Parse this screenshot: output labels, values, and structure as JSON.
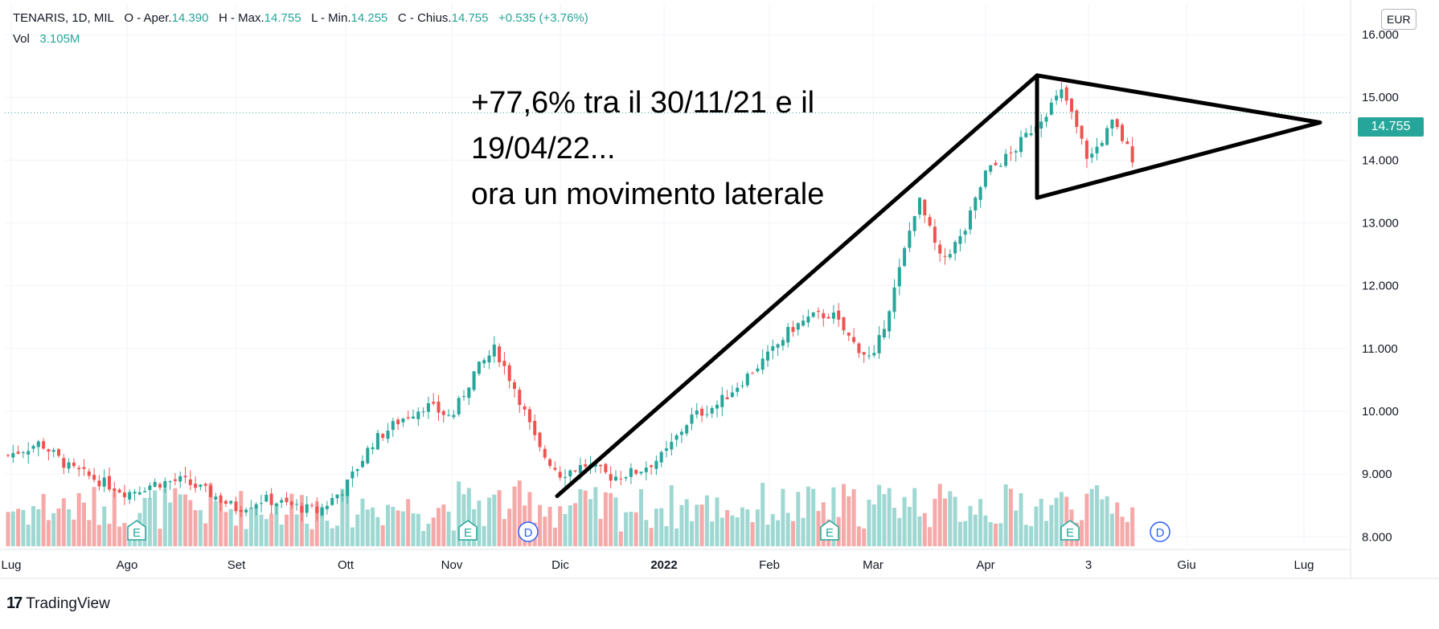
{
  "legend": {
    "symbol": "TENARIS, 1D, MIL",
    "open_label": "O - Aper.",
    "open": "14.390",
    "high_label": "H - Max.",
    "high": "14.755",
    "low_label": "L - Min.",
    "low": "14.255",
    "close_label": "C - Chius.",
    "close": "14.755",
    "change": "+0.535 (+3.76%)",
    "vol_label": "Vol",
    "vol": "3.105M"
  },
  "currency": "EUR",
  "last_price_tag": "14.755",
  "annotation": {
    "line1": " +77,6% tra il 30/11/21 e il",
    "line2": "19/04/22...",
    "line3": "ora un movimento laterale"
  },
  "brand": {
    "logo": "17",
    "name": "TradingView"
  },
  "event_markers": [
    "E",
    "E",
    "D",
    "E",
    "E",
    "D"
  ],
  "colors": {
    "up": "#26a69a",
    "down": "#ef5350",
    "vol_up": "#9fd8d2",
    "vol_down": "#f5a9a8",
    "grid": "#f0f3fa",
    "drawing": "#000000"
  },
  "chart_data": {
    "type": "candlestick",
    "symbol": "TENARIS",
    "interval": "1D",
    "exchange": "MIL",
    "currency": "EUR",
    "x_ticks": [
      "Lug",
      "Ago",
      "Set",
      "Ott",
      "Nov",
      "Dic",
      "2022",
      "Feb",
      "Mar",
      "Apr",
      "3",
      "Giu",
      "Lug"
    ],
    "y_ticks": [
      "16.000",
      "15.000",
      "14.000",
      "13.000",
      "12.000",
      "11.000",
      "10.000",
      "9.000",
      "8.000"
    ],
    "ylim": [
      7.85,
      16.5
    ],
    "last_close": 14.755,
    "close_path": [
      [
        "Lug",
        9.3
      ],
      [
        "Lug",
        9.5
      ],
      [
        "Lug",
        9.1
      ],
      [
        "Lug",
        8.9
      ],
      [
        "Ago",
        8.7
      ],
      [
        "Ago",
        8.85
      ],
      [
        "Ago",
        8.9
      ],
      [
        "Ago",
        8.7
      ],
      [
        "Set",
        8.45
      ],
      [
        "Set",
        8.6
      ],
      [
        "Set",
        8.5
      ],
      [
        "Set",
        8.4
      ],
      [
        "Ott",
        8.8
      ],
      [
        "Ott",
        9.5
      ],
      [
        "Ott",
        9.85
      ],
      [
        "Ott",
        10.1
      ],
      [
        "Nov",
        9.9
      ],
      [
        "Nov",
        10.6
      ],
      [
        "Nov",
        11.0
      ],
      [
        "Nov",
        10.3
      ],
      [
        "Nov",
        9.4
      ],
      [
        "Dic",
        9.0
      ],
      [
        "Dic",
        9.15
      ],
      [
        "Dic",
        8.95
      ],
      [
        "Dic",
        9.05
      ],
      [
        "2022",
        9.3
      ],
      [
        "2022",
        9.9
      ],
      [
        "2022",
        10.1
      ],
      [
        "2022",
        10.5
      ],
      [
        "Feb",
        10.9
      ],
      [
        "Feb",
        11.3
      ],
      [
        "Feb",
        11.5
      ],
      [
        "Feb",
        11.55
      ],
      [
        "Feb",
        11.1
      ],
      [
        "Mar",
        10.8
      ],
      [
        "Mar",
        12.0
      ],
      [
        "Mar",
        13.4
      ],
      [
        "Mar",
        12.4
      ],
      [
        "Mar",
        12.8
      ],
      [
        "Apr",
        13.8
      ],
      [
        "Apr",
        14.1
      ],
      [
        "Apr",
        14.6
      ],
      [
        "Apr",
        15.1
      ],
      [
        "3",
        14.0
      ],
      [
        "3",
        14.6
      ],
      [
        "3",
        13.9
      ],
      [
        "3",
        14.755
      ]
    ],
    "annotations": [
      {
        "type": "trendline",
        "from": [
          "Dic",
          8.65
        ],
        "to": [
          "Apr",
          15.35
        ]
      },
      {
        "type": "triangle",
        "points": [
          [
            "Apr",
            15.35
          ],
          [
            "Lug",
            14.6
          ],
          [
            "Apr",
            13.4
          ]
        ]
      },
      {
        "type": "text",
        "lines": [
          " +77,6% tra il 30/11/21 e il",
          "19/04/22...",
          "ora un movimento laterale"
        ]
      }
    ]
  }
}
